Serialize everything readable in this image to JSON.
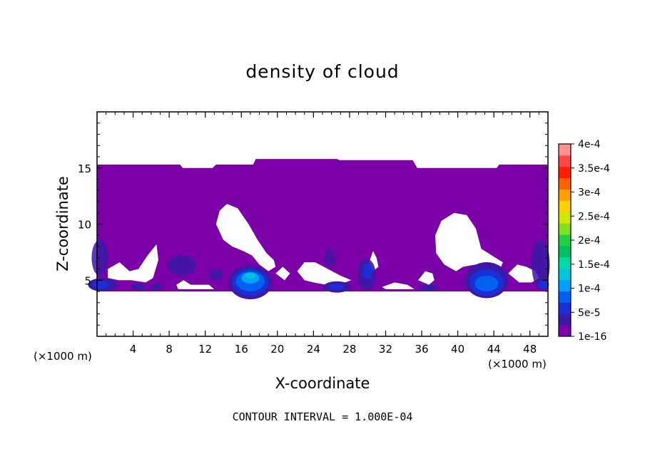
{
  "chart_data": {
    "type": "heatmap",
    "title": "density of cloud",
    "xlabel": "X-coordinate",
    "ylabel": "Z-coordinate",
    "x_unit": "(×1000 m)",
    "footer": "CONTOUR INTERVAL = 1.000E-04",
    "xlim": [
      0,
      50
    ],
    "ylim": [
      0,
      20
    ],
    "x_ticks": [
      4,
      8,
      12,
      16,
      20,
      24,
      28,
      32,
      36,
      40,
      44,
      48
    ],
    "y_ticks": [
      5,
      10,
      15
    ],
    "colorbar": {
      "labels": [
        "1e-16",
        "5e-5",
        "1e-4",
        "1.5e-4",
        "2e-4",
        "2.5e-4",
        "3e-4",
        "3.5e-4",
        "4e-4"
      ],
      "colors": [
        "#7b00a8",
        "#3a1aa6",
        "#1a2fd6",
        "#0060f0",
        "#00a0ff",
        "#00c4d8",
        "#00d8a8",
        "#00c060",
        "#20d040",
        "#80e020",
        "#d0e800",
        "#ffd000",
        "#ffa000",
        "#ff6000",
        "#ff2000",
        "#ff4848",
        "#ff9090"
      ]
    },
    "cloud_top_km": 15.3,
    "cloud_base_km": 3.8,
    "max_density_region": {
      "x_km": 17,
      "z_km": 5.3,
      "value": "about 1e-4"
    },
    "grid": false
  }
}
